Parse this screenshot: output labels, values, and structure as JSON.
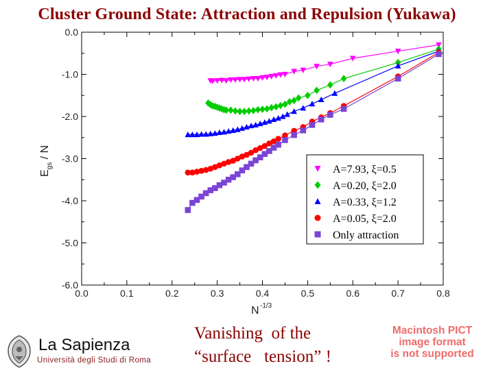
{
  "slide": {
    "title": "Cluster Ground State: Attraction and Repulsion (Yukawa)",
    "caption_lines": [
      "Vanishing  of the",
      "“surface   tension” !"
    ],
    "logo": {
      "name": "La Sapienza",
      "subtitle": "Università degli Studi di Roma"
    },
    "pict_notice": [
      "Macintosh PICT",
      "image format",
      "is not supported"
    ]
  },
  "colors": {
    "title": "#8b0000",
    "magenta": "#ff00ff",
    "green": "#00cc00",
    "blue": "#0000ff",
    "red": "#ff0000",
    "purple": "#7b44d6"
  },
  "chart_data": {
    "type": "scatter",
    "xlabel": "N",
    "xlabel_superscript": "-1/3",
    "ylabel": "E",
    "ylabel_subscript": "gs",
    "ylabel_suffix": " / N",
    "xlim": [
      0.0,
      0.8
    ],
    "ylim": [
      -6.0,
      0.0
    ],
    "x_ticks": [
      "0.0",
      "0.1",
      "0.2",
      "0.3",
      "0.4",
      "0.5",
      "0.6",
      "0.7",
      "0.8"
    ],
    "y_ticks": [
      "0.0",
      "-1.0",
      "-2.0",
      "-3.0",
      "-4.0",
      "-5.0",
      "-6.0"
    ],
    "grid": false,
    "legend_position": "bottom-right",
    "series": [
      {
        "name": "A=7.93, ξ=0.5",
        "marker": "triangle-down",
        "color": "#ff00ff",
        "x": [
          0.285,
          0.29,
          0.3,
          0.31,
          0.32,
          0.33,
          0.34,
          0.35,
          0.36,
          0.37,
          0.38,
          0.39,
          0.4,
          0.41,
          0.42,
          0.43,
          0.44,
          0.45,
          0.47,
          0.49,
          0.52,
          0.55,
          0.6,
          0.7,
          0.79
        ],
        "y": [
          -1.15,
          -1.16,
          -1.15,
          -1.14,
          -1.15,
          -1.13,
          -1.13,
          -1.12,
          -1.12,
          -1.11,
          -1.1,
          -1.1,
          -1.08,
          -1.07,
          -1.05,
          -1.03,
          -1.01,
          -1.0,
          -0.93,
          -0.9,
          -0.81,
          -0.76,
          -0.62,
          -0.45,
          -0.3
        ]
      },
      {
        "name": "A=0.20, ξ=2.0",
        "marker": "diamond",
        "color": "#00cc00",
        "x": [
          0.28,
          0.285,
          0.29,
          0.295,
          0.3,
          0.305,
          0.31,
          0.315,
          0.32,
          0.33,
          0.34,
          0.35,
          0.36,
          0.37,
          0.38,
          0.39,
          0.4,
          0.41,
          0.42,
          0.43,
          0.44,
          0.45,
          0.46,
          0.47,
          0.48,
          0.5,
          0.52,
          0.55,
          0.58,
          0.7,
          0.79
        ],
        "y": [
          -1.68,
          -1.72,
          -1.75,
          -1.76,
          -1.78,
          -1.8,
          -1.82,
          -1.84,
          -1.85,
          -1.85,
          -1.87,
          -1.88,
          -1.88,
          -1.87,
          -1.86,
          -1.84,
          -1.83,
          -1.82,
          -1.79,
          -1.77,
          -1.74,
          -1.71,
          -1.65,
          -1.62,
          -1.56,
          -1.5,
          -1.38,
          -1.25,
          -1.1,
          -0.72,
          -0.4
        ]
      },
      {
        "name": "A=0.33, ξ=1.2",
        "marker": "triangle-up",
        "color": "#0000ff",
        "x": [
          0.235,
          0.245,
          0.255,
          0.265,
          0.275,
          0.285,
          0.295,
          0.305,
          0.315,
          0.325,
          0.335,
          0.345,
          0.355,
          0.365,
          0.375,
          0.385,
          0.395,
          0.405,
          0.415,
          0.425,
          0.435,
          0.445,
          0.455,
          0.47,
          0.49,
          0.51,
          0.53,
          0.56,
          0.7,
          0.79
        ],
        "y": [
          -2.43,
          -2.43,
          -2.43,
          -2.42,
          -2.42,
          -2.41,
          -2.4,
          -2.38,
          -2.37,
          -2.35,
          -2.33,
          -2.31,
          -2.28,
          -2.25,
          -2.22,
          -2.2,
          -2.17,
          -2.14,
          -2.11,
          -2.07,
          -2.04,
          -2.0,
          -1.95,
          -1.88,
          -1.8,
          -1.7,
          -1.6,
          -1.45,
          -0.8,
          -0.45
        ]
      },
      {
        "name": "A=0.05, ξ=2.0",
        "marker": "circle",
        "color": "#ff0000",
        "x": [
          0.235,
          0.245,
          0.255,
          0.265,
          0.275,
          0.285,
          0.295,
          0.305,
          0.315,
          0.325,
          0.335,
          0.345,
          0.355,
          0.365,
          0.375,
          0.385,
          0.395,
          0.405,
          0.415,
          0.425,
          0.435,
          0.45,
          0.47,
          0.49,
          0.51,
          0.53,
          0.55,
          0.58,
          0.7,
          0.79
        ],
        "y": [
          -3.33,
          -3.33,
          -3.31,
          -3.29,
          -3.27,
          -3.24,
          -3.2,
          -3.16,
          -3.12,
          -3.08,
          -3.05,
          -3.0,
          -2.95,
          -2.91,
          -2.86,
          -2.8,
          -2.75,
          -2.7,
          -2.64,
          -2.59,
          -2.53,
          -2.45,
          -2.34,
          -2.25,
          -2.12,
          -2.02,
          -1.92,
          -1.75,
          -1.05,
          -0.48
        ]
      },
      {
        "name": "Only attraction",
        "marker": "square",
        "color": "#7b44d6",
        "x": [
          0.235,
          0.245,
          0.255,
          0.265,
          0.275,
          0.285,
          0.295,
          0.305,
          0.315,
          0.325,
          0.335,
          0.345,
          0.355,
          0.365,
          0.375,
          0.385,
          0.395,
          0.405,
          0.415,
          0.425,
          0.435,
          0.45,
          0.47,
          0.49,
          0.51,
          0.53,
          0.55,
          0.58,
          0.7,
          0.79
        ],
        "y": [
          -4.22,
          -4.05,
          -3.98,
          -3.9,
          -3.82,
          -3.75,
          -3.7,
          -3.63,
          -3.57,
          -3.5,
          -3.44,
          -3.37,
          -3.28,
          -3.2,
          -3.12,
          -3.04,
          -2.97,
          -2.89,
          -2.82,
          -2.74,
          -2.67,
          -2.56,
          -2.44,
          -2.33,
          -2.2,
          -2.07,
          -1.96,
          -1.82,
          -1.1,
          -0.52
        ]
      }
    ]
  }
}
